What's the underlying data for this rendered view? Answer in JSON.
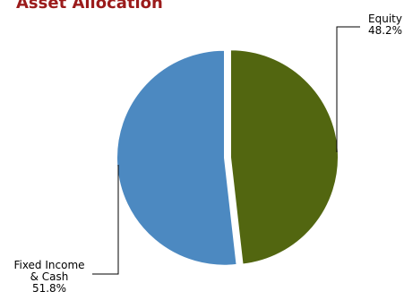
{
  "chart_data": {
    "type": "pie",
    "title": "Asset Allocation",
    "slices": [
      {
        "label_lines": [
          "Equity"
        ],
        "value_text": "48.2%",
        "value": 48.2,
        "color": "#526610"
      },
      {
        "label_lines": [
          "Fixed Income",
          "& Cash"
        ],
        "value_text": "51.8%",
        "value": 51.8,
        "color": "#4c89c1"
      }
    ],
    "start_angle": "12 o'clock",
    "direction": "clockwise",
    "exploded": true,
    "legend": "none"
  }
}
